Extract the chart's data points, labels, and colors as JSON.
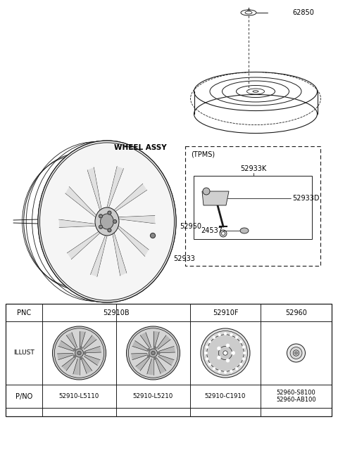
{
  "bg_color": "#ffffff",
  "line_color": "#1a1a1a",
  "parts": {
    "wheel_assy_label": "WHEEL ASSY",
    "part_52950": "52950",
    "part_52933": "52933",
    "part_62850": "62850",
    "tpms_label": "(TPMS)",
    "part_52933K": "52933K",
    "part_52933D": "52933D",
    "part_24537": "24537"
  },
  "table": {
    "pnc_row": [
      "PNC",
      "52910B",
      "52910F",
      "52960"
    ],
    "illust_row": "ILLUST",
    "pno_row": [
      "P/NO",
      "52910-L5110",
      "52910-L5210",
      "52910-C1910",
      "52960-S8100\n52960-AB100"
    ]
  }
}
